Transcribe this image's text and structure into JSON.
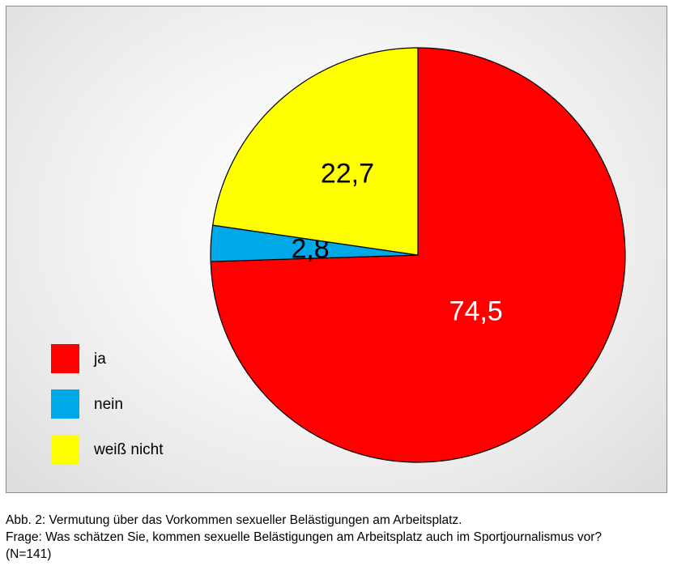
{
  "chart_data": {
    "type": "pie",
    "slices": [
      {
        "label": "ja",
        "value": 74.5,
        "value_label": "74,5",
        "color": "#ff0000",
        "label_color": "#ffffff"
      },
      {
        "label": "nein",
        "value": 2.8,
        "value_label": "2,8",
        "color": "#00a8e8",
        "label_color": "#000000"
      },
      {
        "label": "weiß nicht",
        "value": 22.7,
        "value_label": "22,7",
        "color": "#ffff00",
        "label_color": "#000000"
      }
    ],
    "start_angle": "12 o'clock",
    "direction": "clockwise",
    "legend_position": "left"
  },
  "caption": {
    "line1": "Abb. 2: Vermutung über das Vorkommen sexueller Belästigungen am Arbeitsplatz.",
    "line2": "Frage: Was schätzen Sie, kommen sexuelle Belästigungen am Arbeitsplatz auch im Sportjournalismus vor?",
    "line3": "(N=141)"
  }
}
